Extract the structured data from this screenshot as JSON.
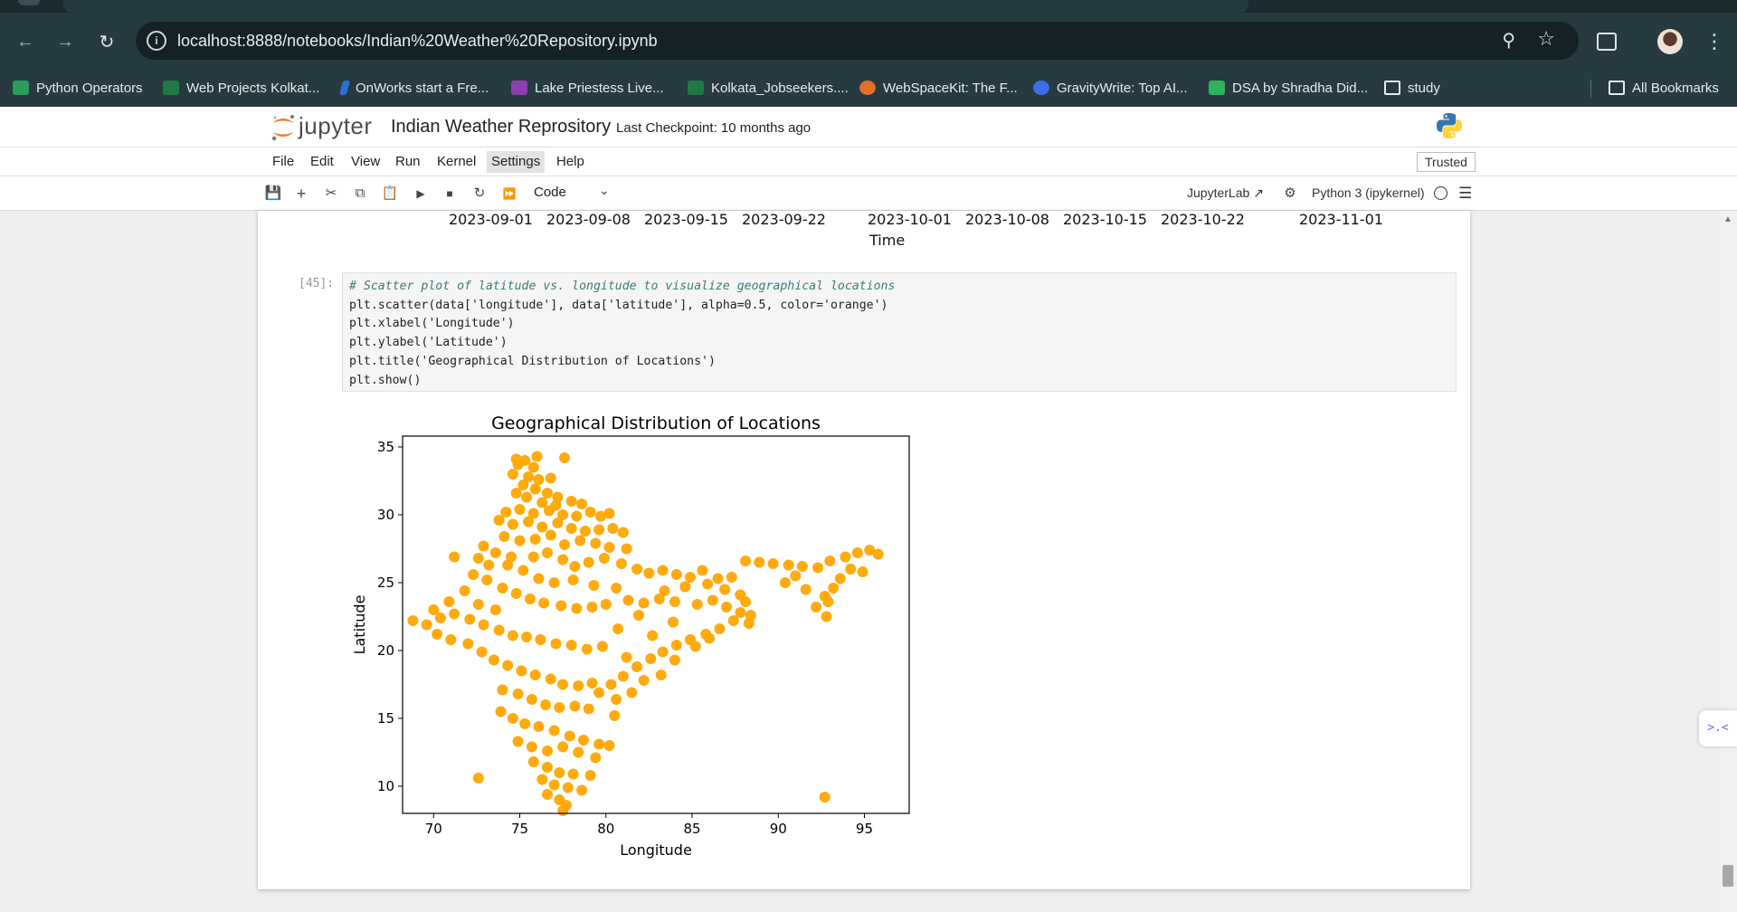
{
  "browser": {
    "url": "localhost:8888/notebooks/Indian%20Weather%20Repository.ipynb",
    "bookmarks": [
      {
        "label": "Python Operators",
        "color": "#2a9d5c"
      },
      {
        "label": "Web Projects Kolkat...",
        "color": "#1e7a45"
      },
      {
        "label": "OnWorks start a Fre...",
        "color": "#2d6fd6"
      },
      {
        "label": "Lake Priestess Live...",
        "color": "#8a3fb0"
      },
      {
        "label": "Kolkata_Jobseekers....",
        "color": "#1e7a45"
      },
      {
        "label": "WebSpaceKit: The F...",
        "color": "#e0702a"
      },
      {
        "label": "GravityWrite: Top AI...",
        "color": "#3d6ee8"
      },
      {
        "label": "DSA by Shradha Did...",
        "color": "#2fb35a"
      },
      {
        "label": "study",
        "color": "folder"
      }
    ],
    "all_bookmarks": "All Bookmarks"
  },
  "jupyter": {
    "wordmark": "jupyter",
    "notebook_title": "Indian Weather Reprository",
    "checkpoint": "Last Checkpoint: 10 months ago",
    "menu": [
      "File",
      "Edit",
      "View",
      "Run",
      "Kernel",
      "Settings",
      "Help"
    ],
    "active_menu": "Settings",
    "trusted": "Trusted",
    "cell_type": "Code",
    "jupyterlab_label": "JupyterLab",
    "kernel_name": "Python 3 (ipykernel)"
  },
  "previous_output": {
    "tick_labels": [
      "2023-09-01",
      "2023-09-08",
      "2023-09-15",
      "2023-09-22",
      "2023-10-01",
      "2023-10-08",
      "2023-10-15",
      "2023-10-22",
      "2023-11-01"
    ],
    "xlabel": "Time"
  },
  "cell": {
    "prompt": "[45]:",
    "code": [
      "# Scatter plot of latitude vs. longitude to visualize geographical locations",
      "plt.scatter(data['longitude'], data['latitude'], alpha=0.5, color='orange')",
      "plt.xlabel('Longitude')",
      "plt.ylabel('Latitude')",
      "plt.title('Geographical Distribution of Locations')",
      "plt.show()"
    ]
  },
  "chart_data": {
    "type": "scatter",
    "title": "Geographical Distribution of Locations",
    "xlabel": "Longitude",
    "ylabel": "Latitude",
    "xlim": [
      68.2,
      97.6
    ],
    "ylim": [
      8.0,
      35.8
    ],
    "xticks": [
      70,
      75,
      80,
      85,
      90,
      95
    ],
    "yticks": [
      10,
      15,
      20,
      25,
      30,
      35
    ],
    "color": "#ffa500",
    "grid": false,
    "points": [
      [
        74.8,
        34.1
      ],
      [
        75.3,
        34.0
      ],
      [
        76.0,
        34.3
      ],
      [
        77.6,
        34.2
      ],
      [
        74.9,
        33.7
      ],
      [
        75.8,
        33.5
      ],
      [
        74.6,
        33.0
      ],
      [
        75.5,
        32.8
      ],
      [
        76.1,
        32.6
      ],
      [
        76.8,
        32.7
      ],
      [
        75.2,
        32.2
      ],
      [
        75.9,
        31.9
      ],
      [
        76.6,
        31.6
      ],
      [
        77.2,
        31.3
      ],
      [
        74.8,
        31.6
      ],
      [
        75.4,
        31.3
      ],
      [
        76.3,
        30.9
      ],
      [
        77.1,
        30.7
      ],
      [
        78.0,
        31.0
      ],
      [
        78.6,
        30.8
      ],
      [
        74.2,
        30.2
      ],
      [
        75.0,
        30.4
      ],
      [
        75.8,
        30.1
      ],
      [
        76.7,
        30.3
      ],
      [
        77.5,
        30.0
      ],
      [
        78.3,
        29.9
      ],
      [
        79.1,
        30.2
      ],
      [
        79.7,
        29.9
      ],
      [
        80.2,
        30.1
      ],
      [
        73.8,
        29.6
      ],
      [
        74.6,
        29.3
      ],
      [
        75.5,
        29.5
      ],
      [
        76.3,
        29.1
      ],
      [
        77.2,
        29.4
      ],
      [
        78.0,
        29.0
      ],
      [
        78.8,
        28.8
      ],
      [
        79.6,
        28.9
      ],
      [
        80.4,
        29.0
      ],
      [
        81.0,
        28.7
      ],
      [
        74.1,
        28.4
      ],
      [
        75.0,
        28.1
      ],
      [
        75.9,
        28.2
      ],
      [
        76.8,
        28.5
      ],
      [
        77.6,
        27.8
      ],
      [
        78.5,
        28.1
      ],
      [
        79.4,
        27.9
      ],
      [
        80.2,
        27.6
      ],
      [
        81.2,
        27.5
      ],
      [
        72.9,
        27.7
      ],
      [
        73.6,
        27.2
      ],
      [
        74.5,
        26.9
      ],
      [
        75.8,
        26.9
      ],
      [
        76.6,
        27.2
      ],
      [
        77.5,
        26.7
      ],
      [
        78.2,
        26.2
      ],
      [
        79.0,
        26.5
      ],
      [
        79.9,
        26.8
      ],
      [
        80.9,
        26.4
      ],
      [
        81.8,
        26.0
      ],
      [
        82.5,
        25.7
      ],
      [
        83.3,
        25.9
      ],
      [
        84.1,
        25.6
      ],
      [
        84.9,
        25.4
      ],
      [
        85.6,
        25.9
      ],
      [
        86.5,
        25.3
      ],
      [
        87.3,
        25.4
      ],
      [
        88.1,
        26.6
      ],
      [
        88.9,
        26.5
      ],
      [
        89.7,
        26.4
      ],
      [
        90.6,
        26.3
      ],
      [
        91.4,
        26.2
      ],
      [
        92.3,
        26.1
      ],
      [
        93.0,
        26.6
      ],
      [
        93.9,
        26.9
      ],
      [
        94.6,
        27.2
      ],
      [
        95.3,
        27.4
      ],
      [
        95.8,
        27.1
      ],
      [
        94.2,
        26.0
      ],
      [
        93.6,
        25.3
      ],
      [
        93.2,
        24.6
      ],
      [
        92.7,
        24.0
      ],
      [
        92.2,
        23.2
      ],
      [
        92.8,
        22.5
      ],
      [
        91.6,
        24.5
      ],
      [
        90.4,
        25.0
      ],
      [
        91.0,
        25.5
      ],
      [
        94.9,
        25.8
      ],
      [
        92.9,
        23.6
      ],
      [
        72.6,
        26.8
      ],
      [
        71.2,
        26.9
      ],
      [
        72.3,
        25.6
      ],
      [
        73.1,
        25.2
      ],
      [
        74.0,
        24.6
      ],
      [
        74.8,
        24.2
      ],
      [
        75.6,
        23.8
      ],
      [
        76.4,
        23.5
      ],
      [
        77.4,
        23.3
      ],
      [
        78.3,
        23.1
      ],
      [
        79.2,
        23.2
      ],
      [
        80.0,
        23.4
      ],
      [
        81.3,
        23.7
      ],
      [
        82.2,
        23.5
      ],
      [
        83.1,
        23.8
      ],
      [
        84.0,
        23.6
      ],
      [
        85.3,
        23.4
      ],
      [
        86.2,
        23.7
      ],
      [
        87.0,
        23.2
      ],
      [
        87.8,
        22.8
      ],
      [
        88.4,
        22.6
      ],
      [
        88.3,
        22.0
      ],
      [
        87.4,
        22.2
      ],
      [
        86.6,
        21.6
      ],
      [
        85.8,
        21.2
      ],
      [
        84.9,
        20.8
      ],
      [
        84.1,
        20.4
      ],
      [
        83.3,
        19.9
      ],
      [
        82.6,
        19.4
      ],
      [
        81.8,
        18.8
      ],
      [
        81.0,
        18.1
      ],
      [
        80.3,
        17.5
      ],
      [
        79.6,
        16.9
      ],
      [
        80.6,
        16.4
      ],
      [
        81.5,
        16.9
      ],
      [
        82.2,
        17.8
      ],
      [
        83.2,
        18.2
      ],
      [
        84.0,
        19.3
      ],
      [
        85.2,
        20.3
      ],
      [
        86.0,
        20.9
      ],
      [
        68.8,
        22.2
      ],
      [
        69.6,
        21.9
      ],
      [
        70.4,
        22.4
      ],
      [
        71.2,
        22.7
      ],
      [
        72.1,
        22.3
      ],
      [
        72.9,
        21.9
      ],
      [
        73.8,
        21.5
      ],
      [
        74.6,
        21.1
      ],
      [
        75.4,
        21.0
      ],
      [
        76.2,
        20.8
      ],
      [
        77.1,
        20.5
      ],
      [
        78.0,
        20.4
      ],
      [
        78.9,
        20.1
      ],
      [
        79.8,
        20.3
      ],
      [
        70.2,
        21.2
      ],
      [
        71.0,
        20.8
      ],
      [
        72.0,
        20.5
      ],
      [
        72.8,
        19.9
      ],
      [
        73.5,
        19.3
      ],
      [
        74.3,
        18.9
      ],
      [
        75.1,
        18.5
      ],
      [
        75.9,
        18.2
      ],
      [
        76.8,
        17.9
      ],
      [
        77.5,
        17.5
      ],
      [
        78.4,
        17.4
      ],
      [
        79.2,
        17.6
      ],
      [
        74.0,
        17.1
      ],
      [
        74.9,
        16.8
      ],
      [
        75.7,
        16.4
      ],
      [
        76.5,
        16.0
      ],
      [
        77.3,
        15.8
      ],
      [
        78.2,
        15.9
      ],
      [
        79.0,
        15.7
      ],
      [
        73.9,
        15.5
      ],
      [
        74.6,
        15.0
      ],
      [
        75.3,
        14.6
      ],
      [
        76.1,
        14.4
      ],
      [
        77.0,
        14.1
      ],
      [
        77.9,
        13.7
      ],
      [
        78.7,
        13.4
      ],
      [
        79.6,
        13.1
      ],
      [
        80.2,
        13.0
      ],
      [
        74.9,
        13.3
      ],
      [
        75.7,
        12.9
      ],
      [
        76.6,
        12.6
      ],
      [
        77.5,
        12.9
      ],
      [
        78.4,
        12.5
      ],
      [
        79.4,
        12.1
      ],
      [
        75.8,
        11.8
      ],
      [
        76.6,
        11.4
      ],
      [
        77.3,
        11.0
      ],
      [
        78.1,
        10.9
      ],
      [
        79.1,
        10.8
      ],
      [
        76.3,
        10.5
      ],
      [
        77.0,
        10.1
      ],
      [
        77.8,
        9.9
      ],
      [
        78.6,
        9.7
      ],
      [
        76.6,
        9.4
      ],
      [
        77.3,
        9.0
      ],
      [
        77.7,
        8.6
      ],
      [
        77.5,
        8.2
      ],
      [
        72.6,
        10.6
      ],
      [
        92.7,
        9.2
      ],
      [
        80.5,
        15.2
      ],
      [
        81.2,
        19.5
      ],
      [
        82.7,
        21.1
      ],
      [
        83.9,
        22.1
      ],
      [
        80.7,
        21.6
      ],
      [
        81.9,
        22.6
      ],
      [
        86.9,
        24.5
      ],
      [
        87.8,
        24.1
      ],
      [
        84.6,
        24.7
      ],
      [
        85.9,
        24.9
      ],
      [
        88.1,
        23.6
      ],
      [
        83.4,
        24.4
      ],
      [
        80.6,
        24.6
      ],
      [
        79.3,
        24.8
      ],
      [
        78.1,
        25.2
      ],
      [
        77.0,
        25.0
      ],
      [
        76.1,
        25.3
      ],
      [
        75.2,
        25.9
      ],
      [
        74.3,
        26.3
      ],
      [
        73.2,
        26.3
      ],
      [
        71.8,
        24.4
      ],
      [
        70.9,
        23.6
      ],
      [
        70.0,
        23.0
      ],
      [
        73.6,
        23.0
      ],
      [
        72.6,
        23.4
      ]
    ]
  }
}
